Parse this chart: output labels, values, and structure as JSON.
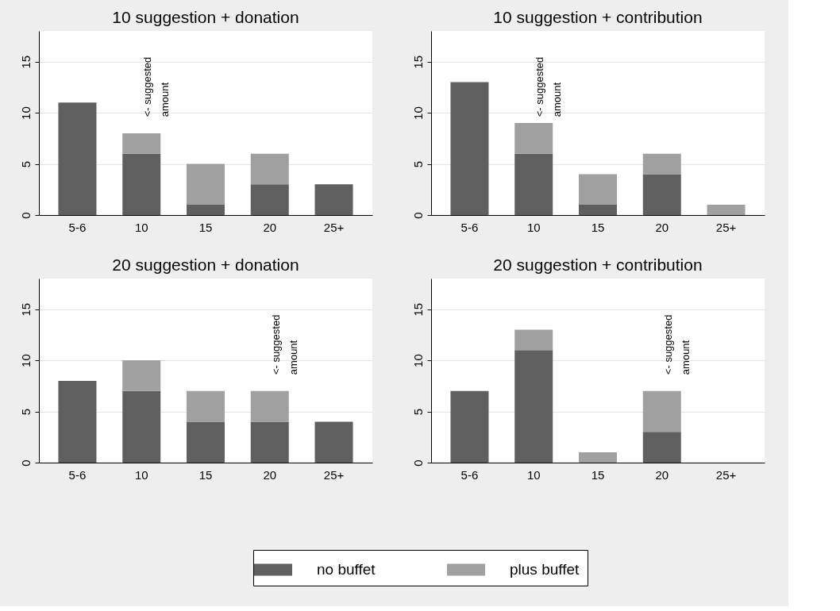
{
  "chart_data": [
    {
      "type": "bar",
      "title": "10 suggestion + donation",
      "categories": [
        "5-6",
        "10",
        "15",
        "20",
        "25+"
      ],
      "stacked": true,
      "ylim": [
        0,
        18
      ],
      "yticks": [
        0,
        5,
        10,
        15
      ],
      "grid": "y",
      "legend": "bottom",
      "series": [
        {
          "name": "no buffet",
          "color": "#5f5f5f",
          "values": [
            11,
            6,
            1,
            3,
            3
          ]
        },
        {
          "name": "plus buffet",
          "color": "#a0a0a0",
          "values": [
            0,
            2,
            4,
            3,
            0
          ]
        }
      ],
      "annotations": [
        "<- suggested\namount"
      ]
    },
    {
      "type": "bar",
      "title": "10 suggestion + contribution",
      "categories": [
        "5-6",
        "10",
        "15",
        "20",
        "25+"
      ],
      "stacked": true,
      "ylim": [
        0,
        18
      ],
      "yticks": [
        0,
        5,
        10,
        15
      ],
      "grid": "y",
      "legend": "bottom",
      "series": [
        {
          "name": "no buffet",
          "color": "#5f5f5f",
          "values": [
            13,
            6,
            1,
            4,
            0
          ]
        },
        {
          "name": "plus buffet",
          "color": "#a0a0a0",
          "values": [
            0,
            3,
            3,
            2,
            1
          ]
        }
      ],
      "annotations": [
        "<- suggested\namount"
      ]
    },
    {
      "type": "bar",
      "title": "20 suggestion + donation",
      "categories": [
        "5-6",
        "10",
        "15",
        "20",
        "25+"
      ],
      "stacked": true,
      "ylim": [
        0,
        18
      ],
      "yticks": [
        0,
        5,
        10,
        15
      ],
      "grid": "y",
      "legend": "bottom",
      "series": [
        {
          "name": "no buffet",
          "color": "#5f5f5f",
          "values": [
            8,
            7,
            4,
            4,
            4
          ]
        },
        {
          "name": "plus buffet",
          "color": "#a0a0a0",
          "values": [
            0,
            3,
            3,
            3,
            0
          ]
        }
      ],
      "annotations": [
        "<- suggested\namount"
      ]
    },
    {
      "type": "bar",
      "title": "20 suggestion + contribution",
      "categories": [
        "5-6",
        "10",
        "15",
        "20",
        "25+"
      ],
      "stacked": true,
      "ylim": [
        0,
        18
      ],
      "yticks": [
        0,
        5,
        10,
        15
      ],
      "grid": "y",
      "legend": "bottom",
      "series": [
        {
          "name": "no buffet",
          "color": "#5f5f5f",
          "values": [
            7,
            11,
            0,
            3,
            0
          ]
        },
        {
          "name": "plus buffet",
          "color": "#a0a0a0",
          "values": [
            0,
            2,
            1,
            4,
            0
          ]
        }
      ],
      "annotations": [
        "<- suggested\namount"
      ]
    }
  ]
}
